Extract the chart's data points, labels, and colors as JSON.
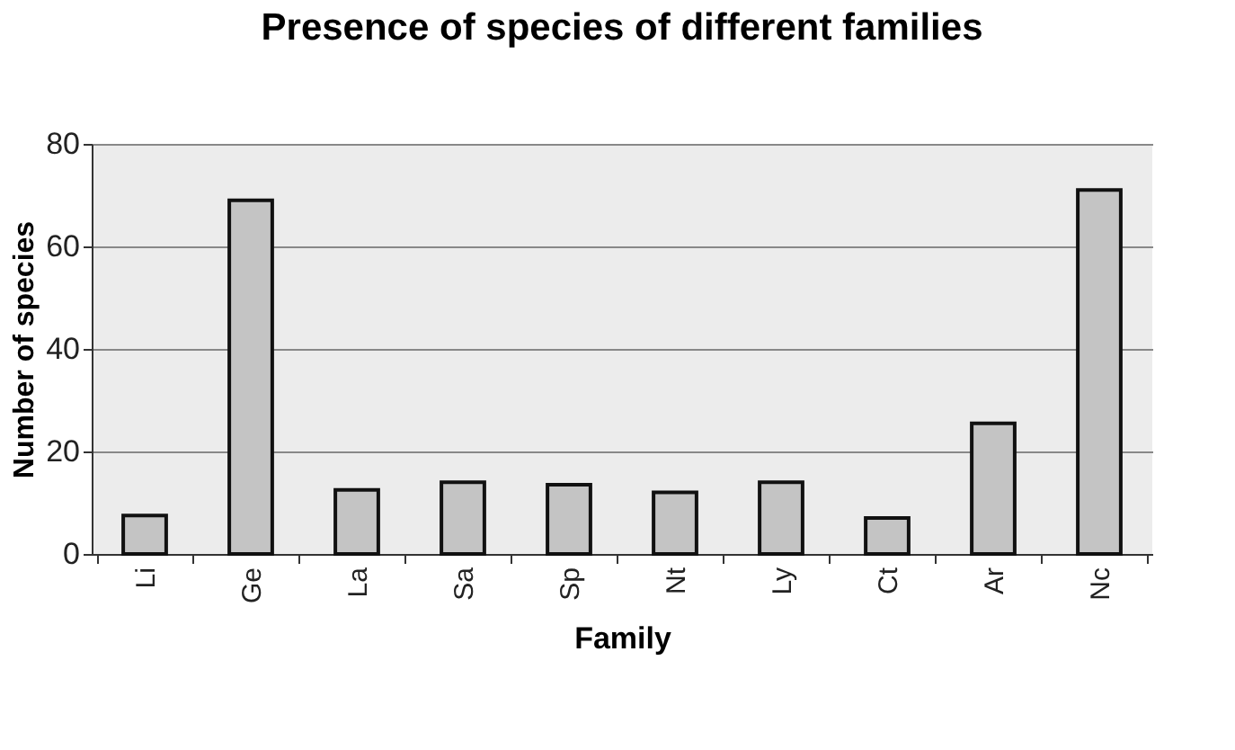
{
  "chart_data": {
    "type": "bar",
    "title": "Presence of species of different families",
    "xlabel": "Family",
    "ylabel": "Number of species",
    "categories": [
      "Li",
      "Ge",
      "La",
      "Sa",
      "Sp",
      "Nt",
      "Ly",
      "Ct",
      "Ar",
      "Nc"
    ],
    "values": [
      7.5,
      69,
      12.5,
      14,
      13.5,
      12,
      14,
      7,
      25.5,
      71
    ],
    "color": "#c4c4c4",
    "ylim": [
      0,
      80
    ],
    "yticks": [
      0,
      20,
      40,
      60,
      80
    ],
    "grid": "y"
  }
}
